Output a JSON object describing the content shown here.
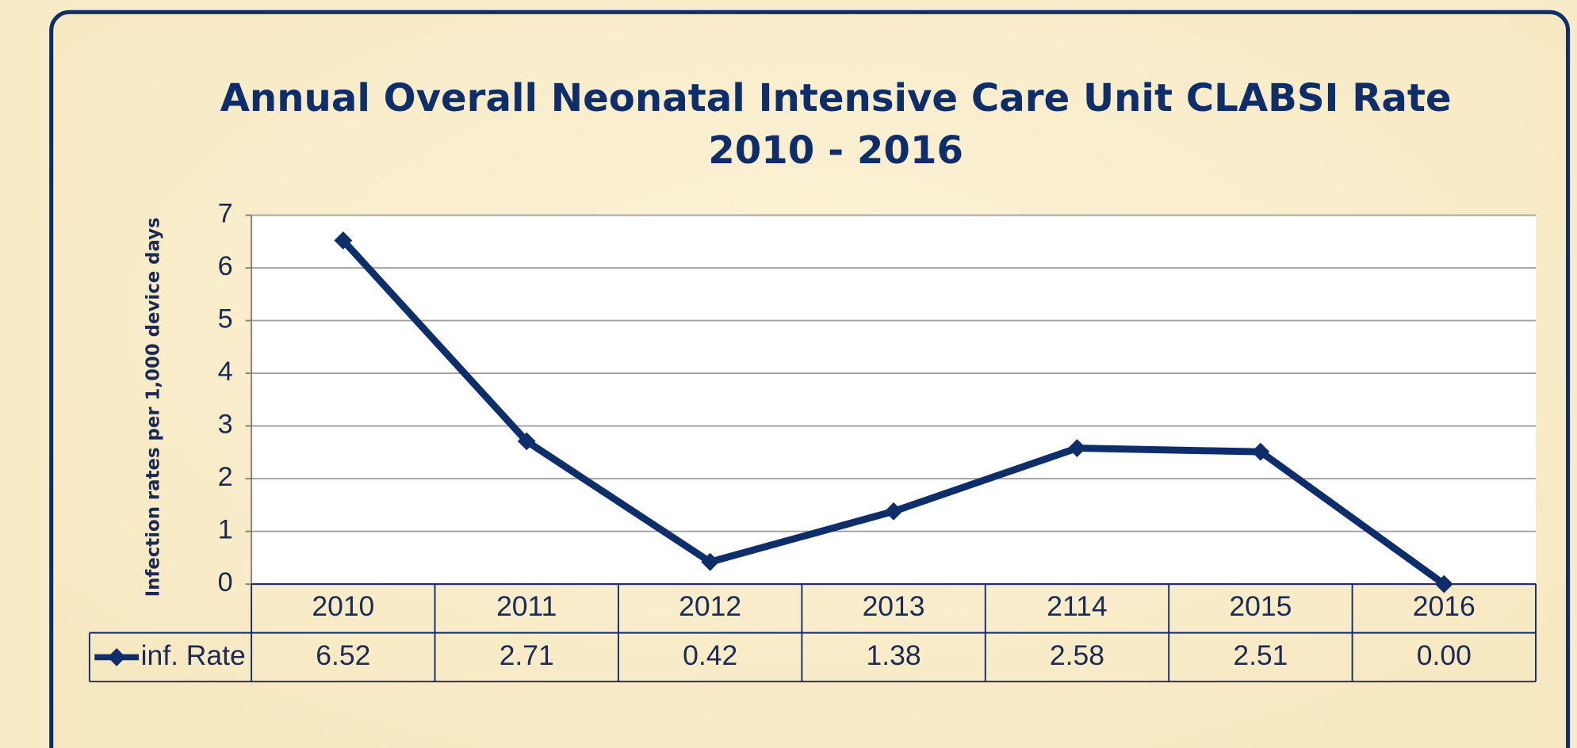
{
  "chart_data": {
    "type": "line",
    "title": [
      "Annual Overall  Neonatal Intensive Care Unit CLABSI Rate",
      "2010 - 2016"
    ],
    "y_label": "Infection rates per 1,000 device days",
    "categories": [
      "2010",
      "2011",
      "2012",
      "2013",
      "2114",
      "2015",
      "2016"
    ],
    "series": [
      {
        "name": "inf. Rate",
        "color": "#0d2d6b",
        "values": [
          6.52,
          2.71,
          0.42,
          1.38,
          2.58,
          2.51,
          0
        ],
        "value_labels": [
          "6.52",
          "2.71",
          "0.42",
          "1.38",
          "2.58",
          "2.51",
          "0.00"
        ]
      }
    ],
    "ylim": [
      0,
      7
    ],
    "yticks": [
      0,
      1,
      2,
      3,
      4,
      5,
      6,
      7
    ],
    "grid": true,
    "data_table": true
  }
}
